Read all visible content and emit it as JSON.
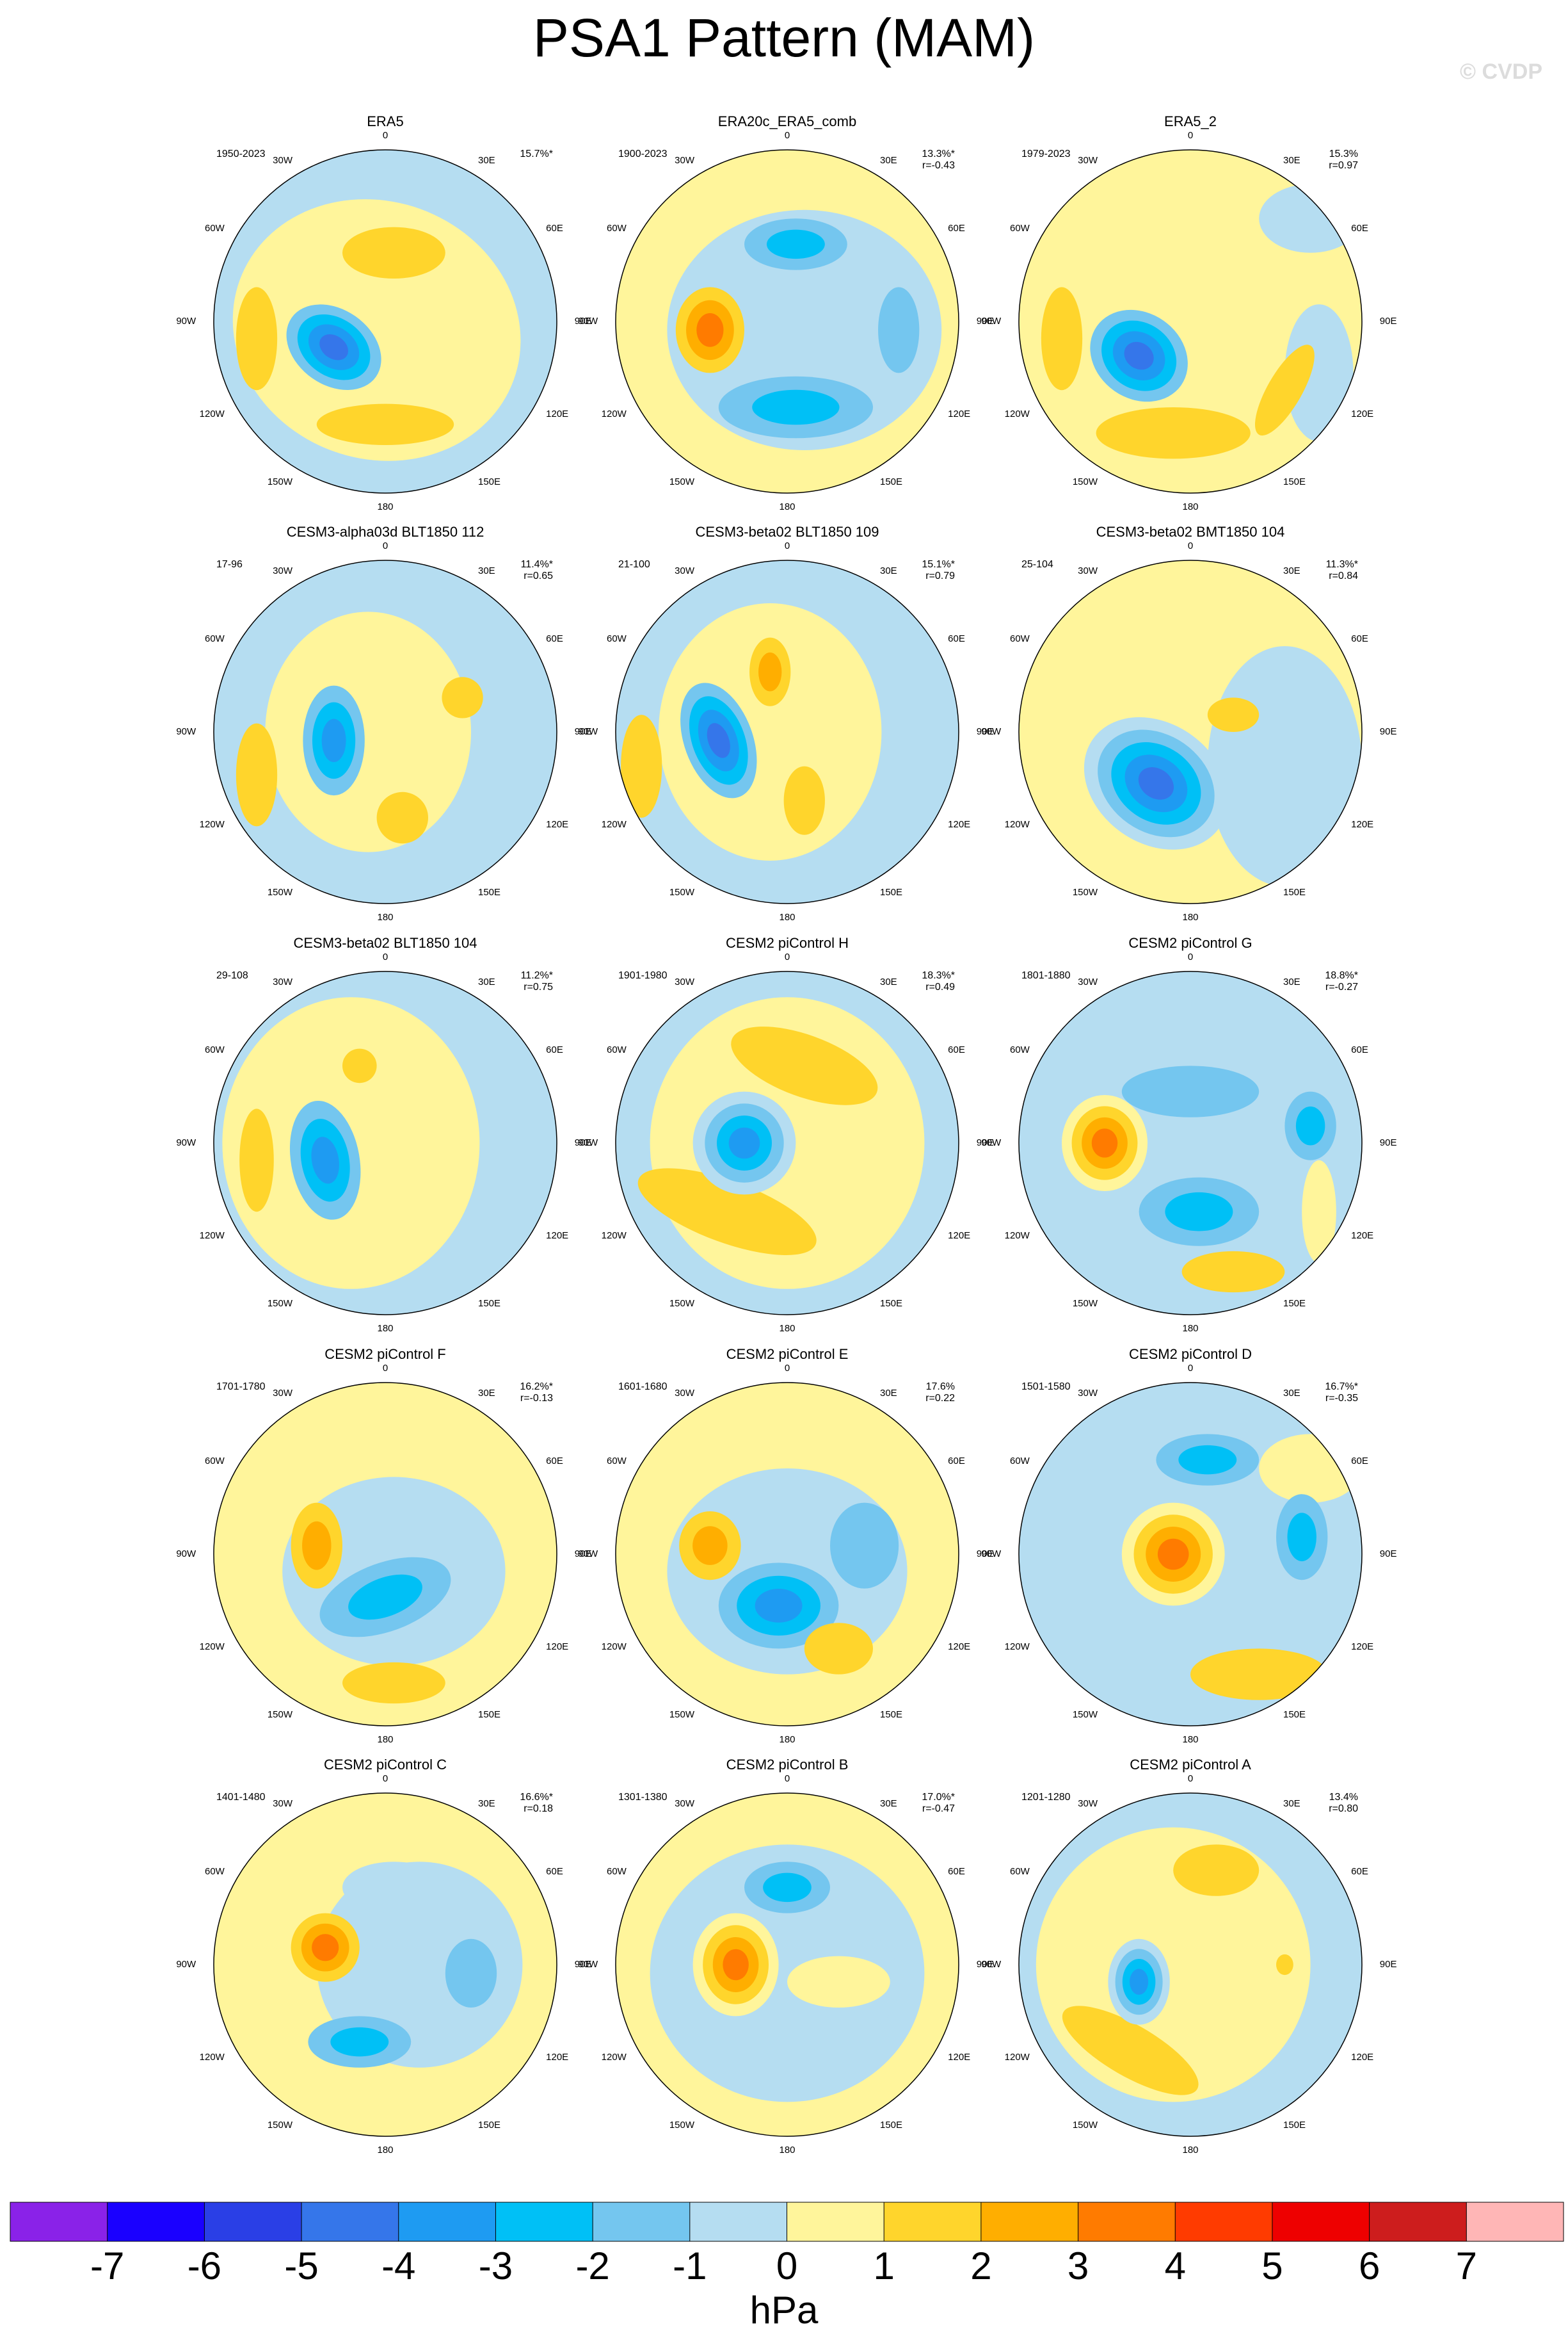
{
  "title": "PSA1 Pattern (MAM)",
  "watermark": "© CVDP",
  "longitudes": [
    "0",
    "30E",
    "60E",
    "90E",
    "120E",
    "150E",
    "180",
    "150W",
    "120W",
    "90W",
    "60W",
    "30W"
  ],
  "panels": [
    {
      "title": "ERA5",
      "period": "1950-2023",
      "percent": "15.7%*"
    },
    {
      "title": "ERA20c_ERA5_comb",
      "period": "1900-2023",
      "percent": "13.3%*",
      "r": "r=-0.43"
    },
    {
      "title": "ERA5_2",
      "period": "1979-2023",
      "percent": "15.3%",
      "r": "r=0.97"
    },
    {
      "title": "CESM3-alpha03d BLT1850 112",
      "period": "17-96",
      "percent": "11.4%*",
      "r": "r=0.65"
    },
    {
      "title": "CESM3-beta02 BLT1850 109",
      "period": "21-100",
      "percent": "15.1%*",
      "r": "r=0.79"
    },
    {
      "title": "CESM3-beta02 BMT1850 104",
      "period": "25-104",
      "percent": "11.3%*",
      "r": "r=0.84"
    },
    {
      "title": "CESM3-beta02 BLT1850 104",
      "period": "29-108",
      "percent": "11.2%*",
      "r": "r=0.75"
    },
    {
      "title": "CESM2 piControl H",
      "period": "1901-1980",
      "percent": "18.3%*",
      "r": "r=0.49"
    },
    {
      "title": "CESM2 piControl G",
      "period": "1801-1880",
      "percent": "18.8%*",
      "r": "r=-0.27"
    },
    {
      "title": "CESM2 piControl F",
      "period": "1701-1780",
      "percent": "16.2%*",
      "r": "r=-0.13"
    },
    {
      "title": "CESM2 piControl E",
      "period": "1601-1680",
      "percent": "17.6%",
      "r": "r=0.22"
    },
    {
      "title": "CESM2 piControl D",
      "period": "1501-1580",
      "percent": "16.7%*",
      "r": "r=-0.35"
    },
    {
      "title": "CESM2 piControl C",
      "period": "1401-1480",
      "percent": "16.6%*",
      "r": "r=0.18"
    },
    {
      "title": "CESM2 piControl B",
      "period": "1301-1380",
      "percent": "17.0%*",
      "r": "r=-0.47"
    },
    {
      "title": "CESM2 piControl A",
      "period": "1201-1280",
      "percent": "13.4%",
      "r": "r=0.80"
    }
  ],
  "colorbar": {
    "colors": [
      "#8a22e8",
      "#1a00ff",
      "#2a3fe6",
      "#3576ea",
      "#1e9bf2",
      "#00c0f6",
      "#74c6ef",
      "#b5ddf1",
      "#fff59b",
      "#ffd52c",
      "#ffae00",
      "#ff7b00",
      "#ff3b00",
      "#ee0000",
      "#cd1d1d",
      "#ffb6b6"
    ],
    "ticks": [
      -7,
      -6,
      -5,
      -4,
      -3,
      -2,
      -1,
      0,
      1,
      2,
      3,
      4,
      5,
      6,
      7
    ],
    "label": "hPa"
  }
}
